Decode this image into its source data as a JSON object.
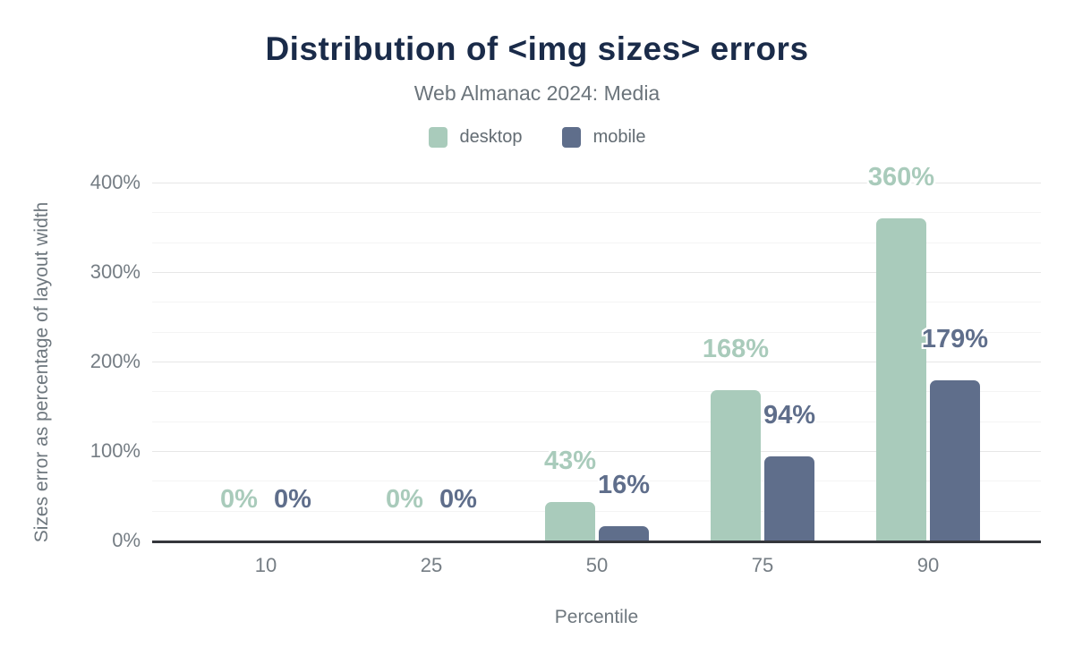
{
  "chart_data": {
    "type": "bar",
    "title": "Distribution of <img sizes> errors",
    "subtitle": "Web Almanac 2024: Media",
    "xlabel": "Percentile",
    "ylabel": "Sizes error as percentage of layout width",
    "categories": [
      "10",
      "25",
      "50",
      "75",
      "90"
    ],
    "series": [
      {
        "name": "desktop",
        "color": "#a9cbbb",
        "values": [
          0,
          0,
          43,
          168,
          360
        ],
        "labels": [
          "0%",
          "0%",
          "43%",
          "168%",
          "360%"
        ]
      },
      {
        "name": "mobile",
        "color": "#5f6e8b",
        "values": [
          0,
          0,
          16,
          94,
          179
        ],
        "labels": [
          "0%",
          "0%",
          "16%",
          "94%",
          "179%"
        ]
      }
    ],
    "ylim": [
      0,
      400
    ],
    "yticks": [
      {
        "value": 0,
        "label": "0%"
      },
      {
        "value": 100,
        "label": "100%"
      },
      {
        "value": 200,
        "label": "200%"
      },
      {
        "value": 300,
        "label": "300%"
      },
      {
        "value": 400,
        "label": "400%"
      }
    ],
    "grid": {
      "major_step": 100,
      "minor_divisions": 3,
      "major_color": "#e6e6e6",
      "minor_color": "#f4f4f4"
    },
    "legend_position": "top",
    "colors": {
      "title": "#1a2b49",
      "subtitle": "#6b747b",
      "axis_line": "#34363b",
      "tick_text": "#757d84",
      "axis_title_text": "#6e777e",
      "legend_text": "#636c73",
      "background": "#ffffff"
    }
  }
}
